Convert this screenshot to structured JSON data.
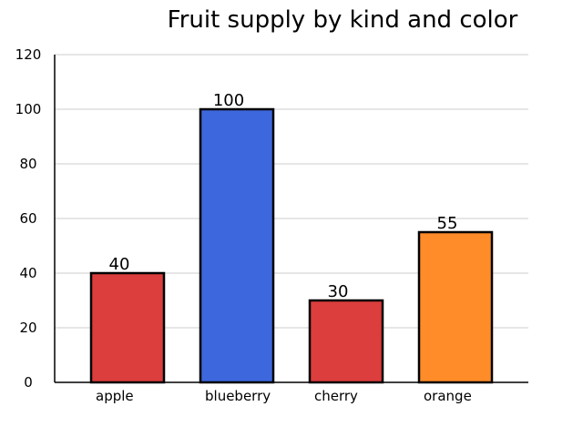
{
  "chart_data": {
    "type": "bar",
    "title": "Fruit supply by kind and color",
    "xlabel": "",
    "ylabel": "",
    "categories": [
      "apple",
      "blueberry",
      "cherry",
      "orange"
    ],
    "values": [
      40,
      100,
      30,
      55
    ],
    "colors": [
      "#dc3d3d",
      "#3d67dc",
      "#dc3d3d",
      "#ff8c28"
    ],
    "ylim": [
      0,
      120
    ],
    "yticks": [
      0,
      20,
      40,
      60,
      80,
      100,
      120
    ],
    "grid": true,
    "legend": "none"
  }
}
